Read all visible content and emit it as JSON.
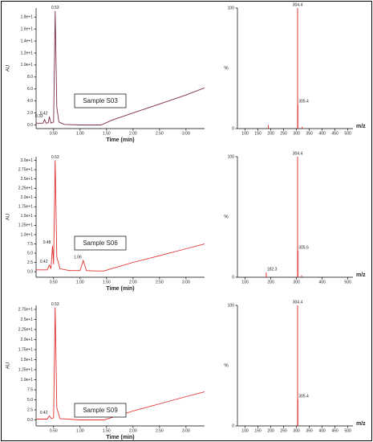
{
  "chart_data": [
    {
      "type": "line",
      "annotation": "Sample S03",
      "xlabel": "Time (min)",
      "ylabel": "AU",
      "color": "#7a3040",
      "x": [
        0.17,
        0.3,
        0.33,
        0.36,
        0.4,
        0.42,
        0.45,
        0.5,
        0.53,
        0.56,
        0.6,
        0.7,
        1.0,
        1.4,
        1.6,
        2.0,
        2.5,
        3.0,
        3.35
      ],
      "values": [
        0.3,
        0.3,
        0.9,
        0.3,
        0.4,
        1.4,
        0.3,
        0.5,
        19,
        3,
        0.5,
        0.1,
        0,
        0,
        0.8,
        2,
        3.5,
        5,
        6.2
      ],
      "peaks": [
        0.33,
        0.42,
        0.53
      ],
      "xlim": [
        0.17,
        3.35
      ],
      "ylim": [
        -0.6,
        19.5
      ],
      "xticks": [
        {
          "value": 0.5,
          "label": "0.50"
        },
        {
          "value": 1,
          "label": "1.00"
        },
        {
          "value": 1.5,
          "label": "1.50"
        },
        {
          "value": 2,
          "label": "2.00"
        },
        {
          "value": 2.5,
          "label": "2.50"
        },
        {
          "value": 3,
          "label": "3.00"
        }
      ],
      "yticks": [
        {
          "value": 0,
          "label": "0.0"
        },
        {
          "value": 2,
          "label": "2.0"
        },
        {
          "value": 4,
          "label": "4.0"
        },
        {
          "value": 6,
          "label": "6.0"
        },
        {
          "value": 8,
          "label": "8.0"
        },
        {
          "value": 10,
          "label": "1.0e+1"
        },
        {
          "value": 12,
          "label": "1.2e+1"
        },
        {
          "value": 14,
          "label": "1.4e+1"
        },
        {
          "value": 16,
          "label": "1.6e+1"
        },
        {
          "value": 18,
          "label": "1.8e+1"
        }
      ]
    },
    {
      "type": "stem",
      "xlabel": "m/z",
      "ylabel": "%",
      "color": "#e02020",
      "x": [
        190,
        304.4,
        305.4,
        322
      ],
      "values": [
        3,
        100,
        20,
        1.5
      ],
      "peaks": [
        304.4,
        305.4
      ],
      "xlim": [
        70,
        520
      ],
      "ylim": [
        0,
        100
      ],
      "xticks": [
        100,
        150,
        200,
        250,
        300,
        350,
        400,
        450,
        500
      ],
      "yticks": [
        0,
        100
      ]
    },
    {
      "type": "line",
      "annotation": "Sample S06",
      "xlabel": "Time (min)",
      "ylabel": "AU",
      "color": "#e03030",
      "x": [
        0.17,
        0.38,
        0.42,
        0.45,
        0.48,
        0.5,
        0.53,
        0.56,
        0.62,
        0.8,
        1.0,
        1.06,
        1.12,
        1.3,
        1.45,
        2.0,
        2.5,
        3.0,
        3.35
      ],
      "values": [
        0.5,
        0.5,
        1.8,
        0.8,
        7,
        2,
        30,
        4,
        0.8,
        0.3,
        0.3,
        3,
        0.3,
        0.2,
        0.2,
        2.5,
        4.3,
        6.2,
        7.5
      ],
      "peaks": [
        0.42,
        0.48,
        0.53,
        1.06
      ],
      "xlim": [
        0.17,
        3.35
      ],
      "ylim": [
        -1.5,
        31
      ],
      "xticks": [
        {
          "value": 0.5,
          "label": "0.50"
        },
        {
          "value": 1,
          "label": "1.00"
        },
        {
          "value": 1.5,
          "label": "1.50"
        },
        {
          "value": 2,
          "label": "2.00"
        },
        {
          "value": 2.5,
          "label": "2.50"
        },
        {
          "value": 3,
          "label": "3.00"
        }
      ],
      "yticks": [
        {
          "value": 0,
          "label": "0.0"
        },
        2.5,
        {
          "value": 5,
          "label": "5.0"
        },
        7.5,
        {
          "value": 10,
          "label": "1.0e+1"
        },
        {
          "value": 12.5,
          "label": "1.25e+1"
        },
        {
          "value": 15,
          "label": "1.5e+1"
        },
        {
          "value": 17.5,
          "label": "1.75e+1"
        },
        {
          "value": 20,
          "label": "2.0e+1"
        },
        {
          "value": 22.5,
          "label": "2.25e+1"
        },
        {
          "value": 25,
          "label": "2.5e+1"
        },
        {
          "value": 27.5,
          "label": "2.75e+1"
        },
        {
          "value": 30,
          "label": "3.0e+1"
        }
      ]
    },
    {
      "type": "stem",
      "xlabel": "m/z",
      "ylabel": "%",
      "color": "#e02020",
      "x": [
        182.3,
        304.4,
        305.5,
        320
      ],
      "values": [
        4,
        100,
        22,
        1.5
      ],
      "peaks": [
        182.3,
        304.4,
        305.5
      ],
      "xlim": [
        70,
        520
      ],
      "ylim": [
        0,
        100
      ],
      "xticks": [
        100,
        200,
        300,
        400,
        500
      ],
      "yticks": [
        0,
        100
      ]
    },
    {
      "type": "line",
      "annotation": "Sample S09",
      "xlabel": "Time (min)",
      "ylabel": "AU",
      "color": "#e03030",
      "x": [
        0.17,
        0.38,
        0.42,
        0.46,
        0.5,
        0.53,
        0.56,
        0.62,
        1.0,
        1.45,
        2.0,
        2.5,
        3.0,
        3.35
      ],
      "values": [
        0.2,
        0.2,
        1,
        0.3,
        0.5,
        28,
        3,
        0.3,
        0,
        0,
        2.2,
        4,
        5.8,
        7
      ],
      "peaks": [
        0.42,
        0.53
      ],
      "xlim": [
        0.17,
        3.35
      ],
      "ylim": [
        -1.5,
        28.5
      ],
      "xticks": [
        {
          "value": 0.5,
          "label": "0.50"
        },
        {
          "value": 1,
          "label": "1.00"
        },
        {
          "value": 1.5,
          "label": "1.50"
        },
        {
          "value": 2,
          "label": "2.00"
        },
        {
          "value": 2.5,
          "label": "2.50"
        },
        {
          "value": 3,
          "label": "3.00"
        }
      ],
      "yticks": [
        {
          "value": 0,
          "label": "0.0"
        },
        2.5,
        {
          "value": 5,
          "label": "5.0"
        },
        7.5,
        {
          "value": 10,
          "label": "1.0e+1"
        },
        {
          "value": 12.5,
          "label": "1.25e+1"
        },
        {
          "value": 15,
          "label": "1.5e+1"
        },
        {
          "value": 17.5,
          "label": "1.75e+1"
        },
        {
          "value": 20,
          "label": "2.0e+1"
        },
        {
          "value": 22.5,
          "label": "2.25e+1"
        },
        {
          "value": 25,
          "label": "2.5e+1"
        },
        {
          "value": 27.5,
          "label": "2.75e+1"
        }
      ]
    },
    {
      "type": "stem",
      "xlabel": "m/z",
      "ylabel": "%",
      "color": "#e02020",
      "x": [
        304.4,
        305.4
      ],
      "values": [
        100,
        22
      ],
      "peaks": [
        304.4,
        305.4
      ],
      "xlim": [
        70,
        520
      ],
      "ylim": [
        0,
        100
      ],
      "xticks": [
        100,
        150,
        200,
        250,
        300,
        350,
        400,
        450,
        500
      ],
      "yticks": [
        0,
        100
      ]
    }
  ]
}
